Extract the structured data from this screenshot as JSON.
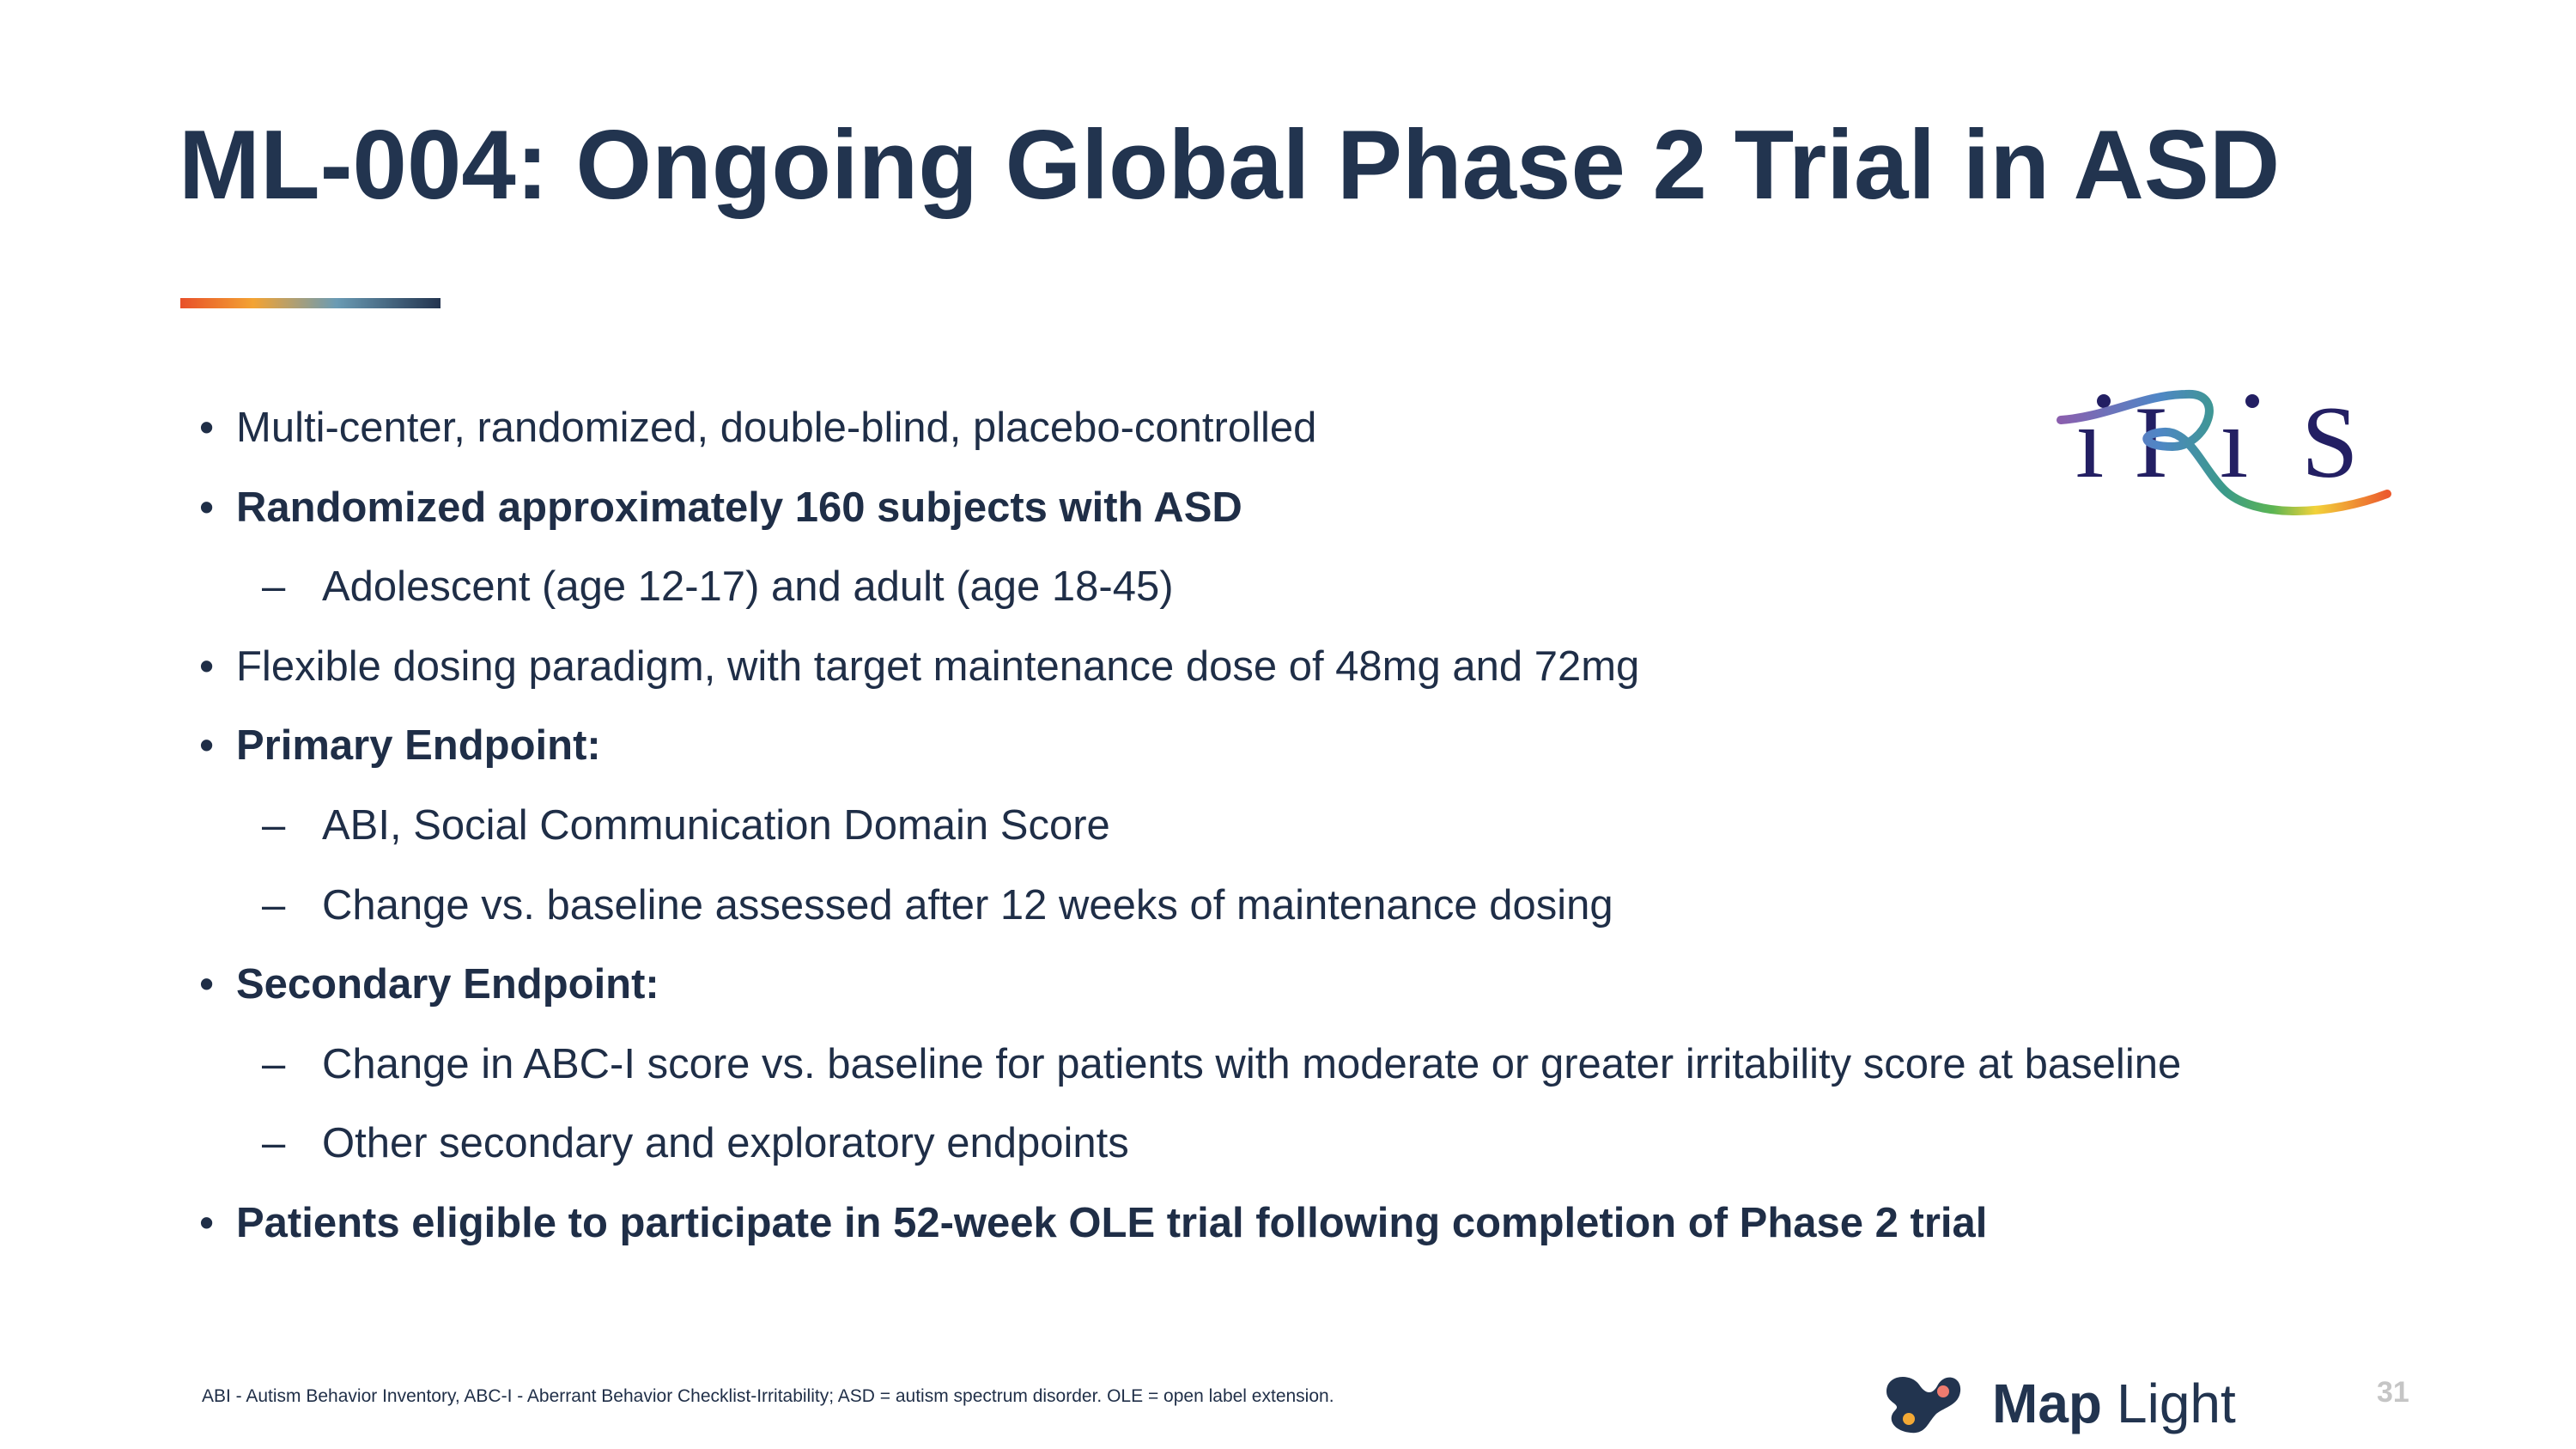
{
  "slide": {
    "title": "ML-004: Ongoing Global Phase 2 Trial in ASD",
    "accent_colors": [
      "#e8502a",
      "#f3a333",
      "#6a9bb4",
      "#23344f"
    ],
    "items": [
      {
        "level": 1,
        "bold": false,
        "text": "Multi-center, randomized, double-blind, placebo-controlled"
      },
      {
        "level": 1,
        "bold": true,
        "text": "Randomized approximately 160 subjects with ASD"
      },
      {
        "level": 2,
        "bold": false,
        "text": "Adolescent (age 12-17) and adult (age 18-45)"
      },
      {
        "level": 1,
        "bold": false,
        "text": "Flexible dosing paradigm, with target maintenance dose of 48mg and 72mg"
      },
      {
        "level": 1,
        "bold": true,
        "text": "Primary Endpoint:"
      },
      {
        "level": 2,
        "bold": false,
        "text": "ABI, Social Communication Domain Score"
      },
      {
        "level": 2,
        "bold": false,
        "text": "Change vs. baseline assessed after 12 weeks of maintenance dosing"
      },
      {
        "level": 1,
        "bold": true,
        "text": "Secondary Endpoint:"
      },
      {
        "level": 2,
        "bold": false,
        "text": "Change in ABC-I score vs. baseline for patients with moderate or greater irritability score at baseline"
      },
      {
        "level": 2,
        "bold": false,
        "text": "Other secondary and exploratory endpoints"
      },
      {
        "level": 1,
        "bold": true,
        "text": "Patients eligible to participate in 52-week OLE trial following completion of Phase 2 trial"
      }
    ],
    "bullet_symbol": "•",
    "dash_symbol": "–",
    "footnote": "ABI - Autism Behavior Inventory, ABC-I - Aberrant Behavior Checklist-Irritability; ASD = autism spectrum disorder. OLE = open label extension.",
    "trial_logo": "iRiS",
    "company_logo": "MapLight",
    "page_number": "31"
  }
}
